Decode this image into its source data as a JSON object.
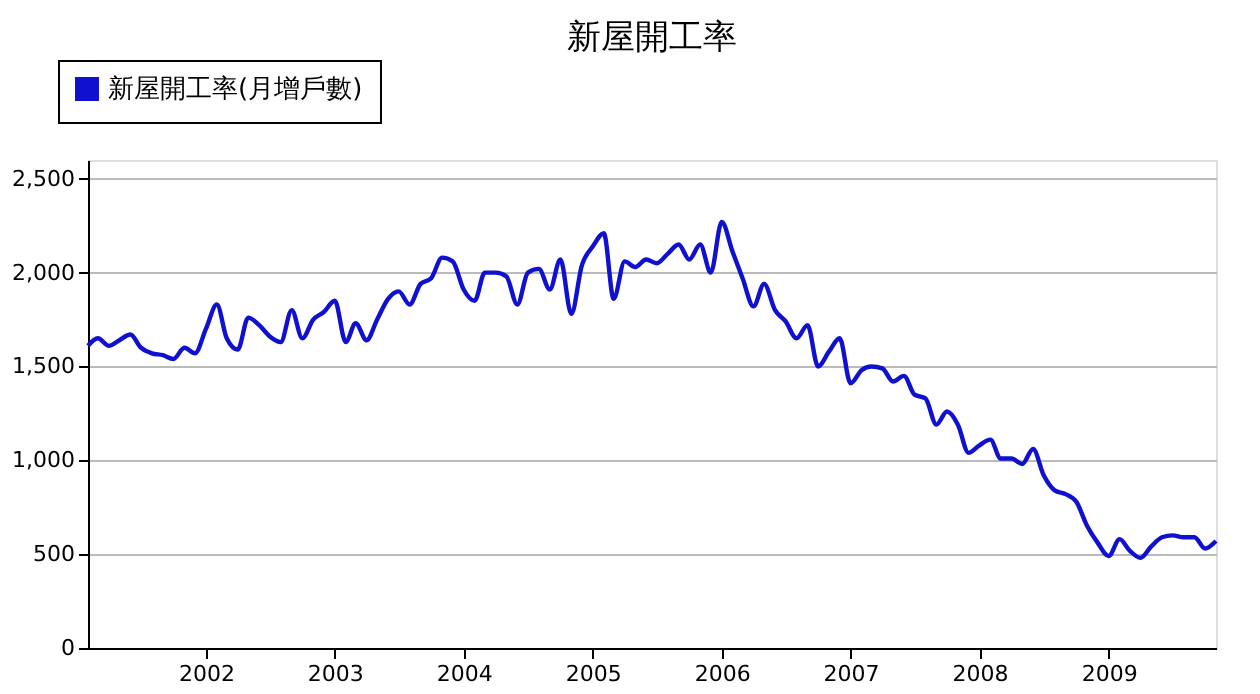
{
  "chart_data": {
    "type": "line",
    "title": "新屋開工率",
    "x": [
      "2001-02",
      "2001-03",
      "2001-04",
      "2001-05",
      "2001-06",
      "2001-07",
      "2001-08",
      "2001-09",
      "2001-10",
      "2001-11",
      "2001-12",
      "2002-01",
      "2002-02",
      "2002-03",
      "2002-04",
      "2002-05",
      "2002-06",
      "2002-07",
      "2002-08",
      "2002-09",
      "2002-10",
      "2002-11",
      "2002-12",
      "2003-01",
      "2003-02",
      "2003-03",
      "2003-04",
      "2003-05",
      "2003-06",
      "2003-07",
      "2003-08",
      "2003-09",
      "2003-10",
      "2003-11",
      "2003-12",
      "2004-01",
      "2004-02",
      "2004-03",
      "2004-04",
      "2004-05",
      "2004-06",
      "2004-07",
      "2004-08",
      "2004-09",
      "2004-10",
      "2004-11",
      "2004-12",
      "2005-01",
      "2005-02",
      "2005-03",
      "2005-04",
      "2005-05",
      "2005-06",
      "2005-07",
      "2005-08",
      "2005-09",
      "2005-10",
      "2005-11",
      "2005-12",
      "2006-01",
      "2006-02",
      "2006-03",
      "2006-04",
      "2006-05",
      "2006-06",
      "2006-07",
      "2006-08",
      "2006-09",
      "2006-10",
      "2006-11",
      "2006-12",
      "2007-01",
      "2007-02",
      "2007-03",
      "2007-04",
      "2007-05",
      "2007-06",
      "2007-07",
      "2007-08",
      "2007-09",
      "2007-10",
      "2007-11",
      "2007-12",
      "2008-01",
      "2008-02",
      "2008-03",
      "2008-04",
      "2008-05",
      "2008-06",
      "2008-07",
      "2008-08",
      "2008-09",
      "2008-10",
      "2008-11",
      "2008-12",
      "2009-01",
      "2009-02",
      "2009-03",
      "2009-04",
      "2009-05",
      "2009-06",
      "2009-07",
      "2009-08",
      "2009-09",
      "2009-10",
      "2009-11"
    ],
    "series": [
      {
        "name": "新屋開工率(月增戶數)",
        "color": "#1010d0",
        "values": [
          1610,
          1650,
          1610,
          1640,
          1670,
          1600,
          1570,
          1560,
          1540,
          1600,
          1570,
          1700,
          1830,
          1650,
          1590,
          1760,
          1720,
          1660,
          1630,
          1800,
          1650,
          1750,
          1790,
          1850,
          1630,
          1730,
          1640,
          1750,
          1860,
          1900,
          1830,
          1940,
          1970,
          2080,
          2060,
          1910,
          1850,
          2000,
          2000,
          1980,
          1830,
          2000,
          2020,
          1910,
          2070,
          1780,
          2040,
          2140,
          2210,
          1860,
          2060,
          2030,
          2070,
          2050,
          2100,
          2150,
          2070,
          2150,
          2000,
          2270,
          2110,
          1970,
          1820,
          1940,
          1800,
          1740,
          1650,
          1720,
          1500,
          1580,
          1650,
          1410,
          1480,
          1500,
          1490,
          1420,
          1450,
          1350,
          1330,
          1190,
          1260,
          1190,
          1040,
          1080,
          1110,
          1010,
          1010,
          980,
          1060,
          920,
          840,
          820,
          780,
          650,
          560,
          490,
          580,
          520,
          480,
          540,
          590,
          600,
          590,
          590,
          530,
          570
        ]
      }
    ],
    "xlim": [
      "2001-02",
      "2009-11"
    ],
    "xticks": [
      {
        "value": "2002-01",
        "label": "2002"
      },
      {
        "value": "2003-01",
        "label": "2003"
      },
      {
        "value": "2004-01",
        "label": "2004"
      },
      {
        "value": "2005-01",
        "label": "2005"
      },
      {
        "value": "2006-01",
        "label": "2006"
      },
      {
        "value": "2007-01",
        "label": "2007"
      },
      {
        "value": "2008-01",
        "label": "2008"
      },
      {
        "value": "2009-01",
        "label": "2009"
      }
    ],
    "ylim": [
      0,
      2600
    ],
    "yticks": [
      {
        "value": 0,
        "label": "0"
      },
      {
        "value": 500,
        "label": "500"
      },
      {
        "value": 1000,
        "label": "1,000"
      },
      {
        "value": 1500,
        "label": "1,500"
      },
      {
        "value": 2000,
        "label": "2,000"
      },
      {
        "value": 2500,
        "label": "2,500"
      }
    ],
    "grid": "y",
    "legend": "top left",
    "marker": "none",
    "line_style": "solid"
  }
}
